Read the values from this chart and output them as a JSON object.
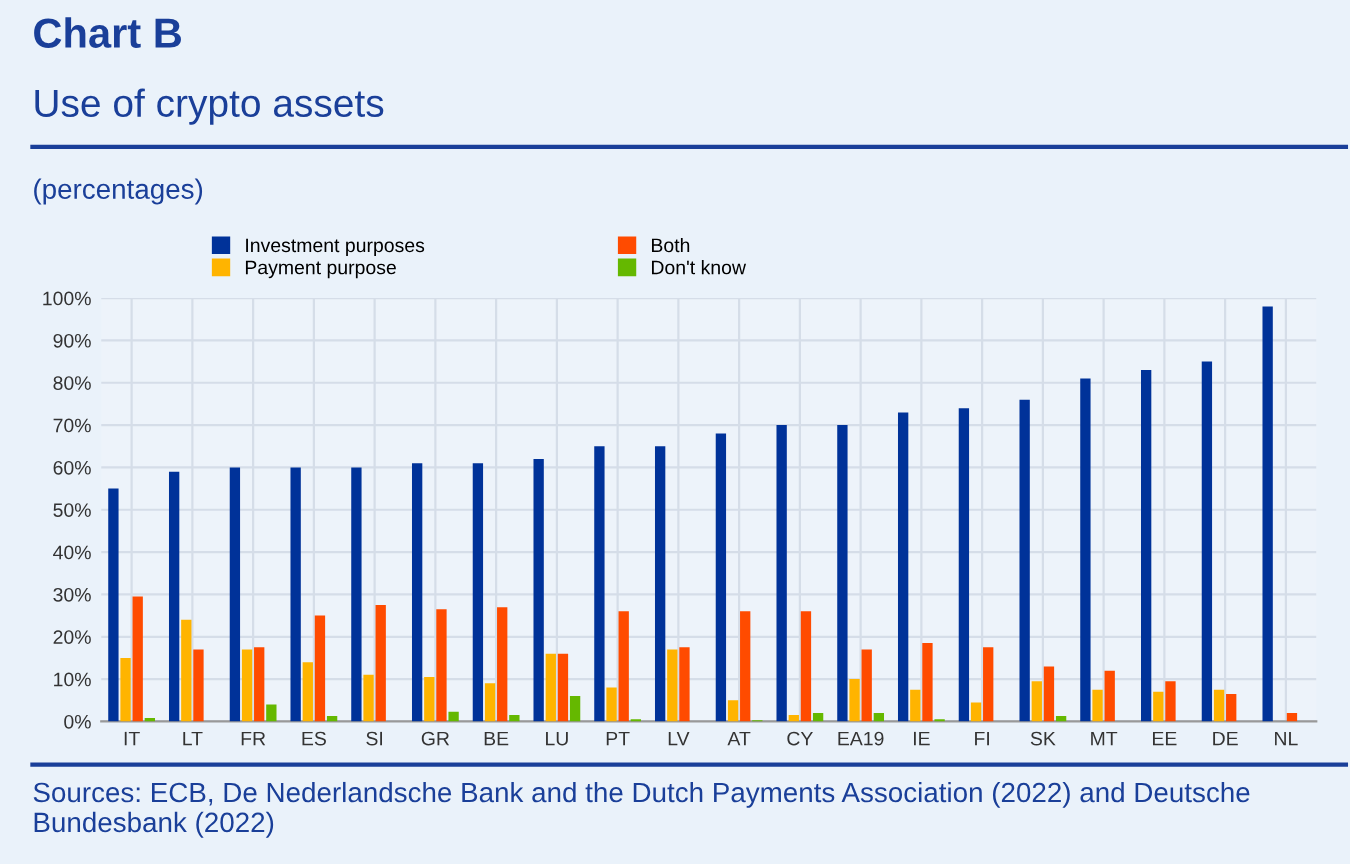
{
  "chart_data": {
    "type": "bar",
    "title": "Chart B",
    "subtitle": "Use of crypto assets",
    "ylabel": "(percentages)",
    "categories": [
      "IT",
      "LT",
      "FR",
      "ES",
      "SI",
      "GR",
      "BE",
      "LU",
      "PT",
      "LV",
      "AT",
      "CY",
      "EA19",
      "IE",
      "FI",
      "SK",
      "MT",
      "EE",
      "DE",
      "NL"
    ],
    "series": [
      {
        "name": "Investment purposes",
        "color": "#003299",
        "values": [
          55,
          59,
          60,
          60,
          60,
          61,
          61,
          62,
          65,
          65,
          68,
          70,
          70,
          73,
          74,
          76,
          81,
          83,
          85,
          98
        ]
      },
      {
        "name": "Payment purpose",
        "color": "#ffb400",
        "values": [
          15,
          24,
          17,
          14,
          11,
          10.5,
          9,
          16,
          8,
          17,
          5,
          1.5,
          10,
          7.5,
          4.5,
          9.5,
          7.5,
          7,
          7.5,
          0
        ]
      },
      {
        "name": "Both",
        "color": "#ff4b00",
        "values": [
          29.5,
          17,
          17.5,
          25,
          27.5,
          26.5,
          27,
          16,
          26,
          17.5,
          26,
          26,
          17,
          18.5,
          17.5,
          13,
          12,
          9.5,
          6.5,
          2
        ]
      },
      {
        "name": "Don't know",
        "color": "#65b800",
        "values": [
          0.8,
          0,
          4,
          1.3,
          0,
          2.3,
          1.5,
          6,
          0.5,
          0,
          0.3,
          2,
          2,
          0.5,
          0,
          1.3,
          0,
          0,
          0,
          0
        ]
      }
    ],
    "ylim": [
      0,
      100
    ],
    "yticks": [
      {
        "value": 0,
        "label": "0%"
      },
      {
        "value": 10,
        "label": "10%"
      },
      {
        "value": 20,
        "label": "20%"
      },
      {
        "value": 30,
        "label": "30%"
      },
      {
        "value": 40,
        "label": "40%"
      },
      {
        "value": 50,
        "label": "50%"
      },
      {
        "value": 60,
        "label": "60%"
      },
      {
        "value": 70,
        "label": "70%"
      },
      {
        "value": 80,
        "label": "80%"
      },
      {
        "value": 90,
        "label": "90%"
      },
      {
        "value": 100,
        "label": "100%"
      }
    ],
    "grid": true,
    "legend": "top left",
    "annotations": [
      "Sources: ECB, De Nederlandsche Bank and the Dutch Payments Association (2022) and Deutsche Bundesbank (2022)"
    ]
  }
}
